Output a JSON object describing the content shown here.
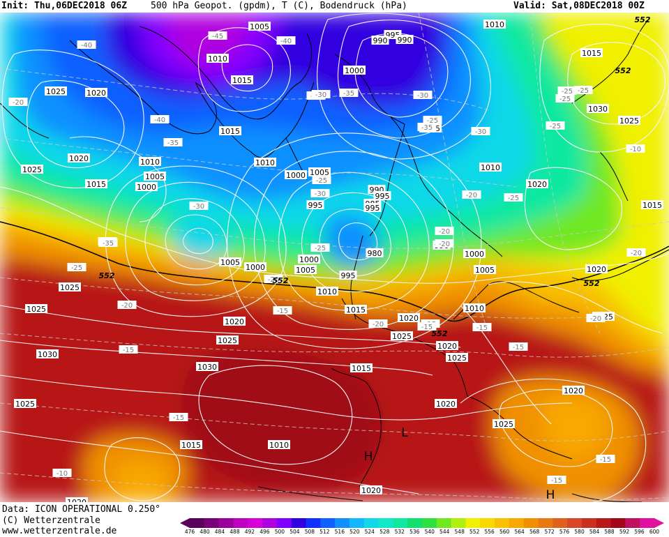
{
  "header": {
    "init": "Init: Thu,06DEC2018 06Z",
    "title": "500 hPa Geopot. (gpdm), T (C), Bodendruck (hPa)",
    "valid": "Valid: Sat,08DEC2018 00Z"
  },
  "footer": {
    "data_line": "Data: ICON OPERATIONAL 0.250°",
    "copyright_line": "(C) Wetterzentrale",
    "url_line": "www.wetterzentrale.de"
  },
  "colorscale": {
    "values": [
      "476",
      "480",
      "484",
      "488",
      "492",
      "496",
      "500",
      "504",
      "508",
      "512",
      "516",
      "520",
      "524",
      "528",
      "532",
      "536",
      "540",
      "544",
      "548",
      "552",
      "556",
      "560",
      "564",
      "568",
      "572",
      "576",
      "580",
      "584",
      "588",
      "592",
      "596",
      "600"
    ],
    "colors": [
      "#5a005a",
      "#7a007a",
      "#9a009a",
      "#c000c0",
      "#d800d8",
      "#b000e0",
      "#8000ff",
      "#3000e0",
      "#1030ff",
      "#1060ff",
      "#1090ff",
      "#10b8ff",
      "#10d8e8",
      "#10e8c8",
      "#10e8a0",
      "#10e070",
      "#30e040",
      "#70e820",
      "#b0f010",
      "#f0f000",
      "#f8d800",
      "#f8c000",
      "#f8a800",
      "#f09000",
      "#e87810",
      "#e06020",
      "#d84828",
      "#c83020",
      "#b81818",
      "#a00818",
      "#c01060",
      "#e010a0"
    ]
  },
  "pressure_labels": [
    {
      "text": "1005"
    },
    {
      "text": "1010"
    },
    {
      "text": "1015"
    },
    {
      "text": "1025"
    },
    {
      "text": "1020"
    },
    {
      "text": "1025"
    },
    {
      "text": "1015"
    },
    {
      "text": "1010"
    },
    {
      "text": "1005"
    },
    {
      "text": "1000"
    },
    {
      "text": "1020"
    },
    {
      "text": "1015"
    },
    {
      "text": "1010"
    },
    {
      "text": "1000"
    },
    {
      "text": "1005"
    },
    {
      "text": "995"
    },
    {
      "text": "990"
    },
    {
      "text": "985"
    },
    {
      "text": "995"
    },
    {
      "text": "990"
    },
    {
      "text": "1000"
    },
    {
      "text": "980"
    },
    {
      "text": "990"
    },
    {
      "text": "995"
    },
    {
      "text": "1000"
    },
    {
      "text": "1005"
    },
    {
      "text": "1010"
    },
    {
      "text": "1015"
    },
    {
      "text": "1010"
    },
    {
      "text": "1000"
    },
    {
      "text": "1005"
    },
    {
      "text": "1010"
    },
    {
      "text": "1015"
    },
    {
      "text": "1030"
    },
    {
      "text": "1025"
    },
    {
      "text": "1020"
    },
    {
      "text": "1015"
    },
    {
      "text": "1020"
    },
    {
      "text": "1020"
    },
    {
      "text": "1025"
    },
    {
      "text": "1020"
    },
    {
      "text": "1025"
    },
    {
      "text": "1015"
    },
    {
      "text": "1020"
    },
    {
      "text": "1025"
    },
    {
      "text": "1030"
    },
    {
      "text": "1025"
    },
    {
      "text": "1025"
    },
    {
      "text": "1030"
    },
    {
      "text": "1025"
    },
    {
      "text": "1015"
    },
    {
      "text": "1010"
    },
    {
      "text": "1020"
    },
    {
      "text": "1025"
    },
    {
      "text": "1020"
    },
    {
      "text": "1025"
    },
    {
      "text": "1020"
    },
    {
      "text": "1020"
    },
    {
      "text": "1015"
    },
    {
      "text": "1010"
    },
    {
      "text": "1005"
    },
    {
      "text": "1000"
    },
    {
      "text": "995"
    },
    {
      "text": "990"
    },
    {
      "text": "995"
    }
  ],
  "temp_labels": [
    {
      "text": "-40"
    },
    {
      "text": "-45"
    },
    {
      "text": "-40"
    },
    {
      "text": "-35"
    },
    {
      "text": "-40"
    },
    {
      "text": "-35"
    },
    {
      "text": "-30"
    },
    {
      "text": "-35"
    },
    {
      "text": "-30"
    },
    {
      "text": "-35"
    },
    {
      "text": "-30"
    },
    {
      "text": "-25"
    },
    {
      "text": "-25"
    },
    {
      "text": "-20"
    },
    {
      "text": "-25"
    },
    {
      "text": "-25"
    },
    {
      "text": "-25"
    },
    {
      "text": "-20"
    },
    {
      "text": "-20"
    },
    {
      "text": "-25"
    },
    {
      "text": "-20"
    },
    {
      "text": "-15"
    },
    {
      "text": "-20"
    },
    {
      "text": "-15"
    },
    {
      "text": "-15"
    },
    {
      "text": "-15"
    },
    {
      "text": "-15"
    },
    {
      "text": "-20"
    },
    {
      "text": "-15"
    },
    {
      "text": "-10"
    },
    {
      "text": "-15"
    },
    {
      "text": "-15"
    },
    {
      "text": "-10"
    },
    {
      "text": "-15"
    },
    {
      "text": "-20"
    },
    {
      "text": "-25"
    },
    {
      "text": "-20"
    },
    {
      "text": "-25"
    },
    {
      "text": "-30"
    },
    {
      "text": "-30"
    },
    {
      "text": "-30"
    },
    {
      "text": "-20"
    },
    {
      "text": "-35"
    },
    {
      "text": "-25"
    }
  ],
  "geopot_labels": [
    {
      "text": "552"
    },
    {
      "text": "552"
    },
    {
      "text": "552"
    },
    {
      "text": "552"
    },
    {
      "text": "552"
    },
    {
      "text": "552"
    }
  ],
  "centers": [
    {
      "text": "H"
    },
    {
      "text": "L"
    },
    {
      "text": "H"
    }
  ]
}
